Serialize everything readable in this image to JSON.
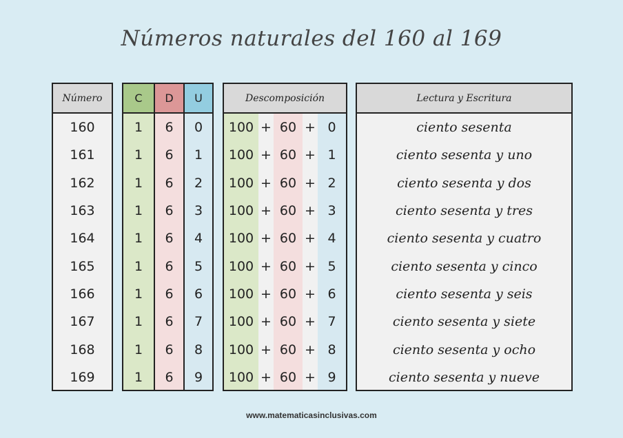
{
  "title": "Números naturales del 160 al 169",
  "headers": {
    "numero": "Número",
    "c": "C",
    "d": "D",
    "u": "U",
    "descomposicion": "Descomposición",
    "lectura": "Lectura y Escritura"
  },
  "colors": {
    "background": "#d9ecf3",
    "centenas": "#a9c98a",
    "decenas": "#dc9797",
    "unidades": "#93cde0"
  },
  "rows": [
    {
      "numero": "160",
      "c": "1",
      "d": "6",
      "u": "0",
      "dc": "100",
      "dd": "60",
      "du": "0",
      "plus": "+",
      "lectura": "ciento sesenta"
    },
    {
      "numero": "161",
      "c": "1",
      "d": "6",
      "u": "1",
      "dc": "100",
      "dd": "60",
      "du": "1",
      "plus": "+",
      "lectura": "ciento sesenta y uno"
    },
    {
      "numero": "162",
      "c": "1",
      "d": "6",
      "u": "2",
      "dc": "100",
      "dd": "60",
      "du": "2",
      "plus": "+",
      "lectura": "ciento sesenta y dos"
    },
    {
      "numero": "163",
      "c": "1",
      "d": "6",
      "u": "3",
      "dc": "100",
      "dd": "60",
      "du": "3",
      "plus": "+",
      "lectura": "ciento sesenta y tres"
    },
    {
      "numero": "164",
      "c": "1",
      "d": "6",
      "u": "4",
      "dc": "100",
      "dd": "60",
      "du": "4",
      "plus": "+",
      "lectura": "ciento sesenta y cuatro"
    },
    {
      "numero": "165",
      "c": "1",
      "d": "6",
      "u": "5",
      "dc": "100",
      "dd": "60",
      "du": "5",
      "plus": "+",
      "lectura": "ciento sesenta y cinco"
    },
    {
      "numero": "166",
      "c": "1",
      "d": "6",
      "u": "6",
      "dc": "100",
      "dd": "60",
      "du": "6",
      "plus": "+",
      "lectura": "ciento sesenta y seis"
    },
    {
      "numero": "167",
      "c": "1",
      "d": "6",
      "u": "7",
      "dc": "100",
      "dd": "60",
      "du": "7",
      "plus": "+",
      "lectura": "ciento sesenta y siete"
    },
    {
      "numero": "168",
      "c": "1",
      "d": "6",
      "u": "8",
      "dc": "100",
      "dd": "60",
      "du": "8",
      "plus": "+",
      "lectura": "ciento sesenta y ocho"
    },
    {
      "numero": "169",
      "c": "1",
      "d": "6",
      "u": "9",
      "dc": "100",
      "dd": "60",
      "du": "9",
      "plus": "+",
      "lectura": "ciento sesenta y nueve"
    }
  ],
  "footer": "www.matematicasinclusivas.com"
}
